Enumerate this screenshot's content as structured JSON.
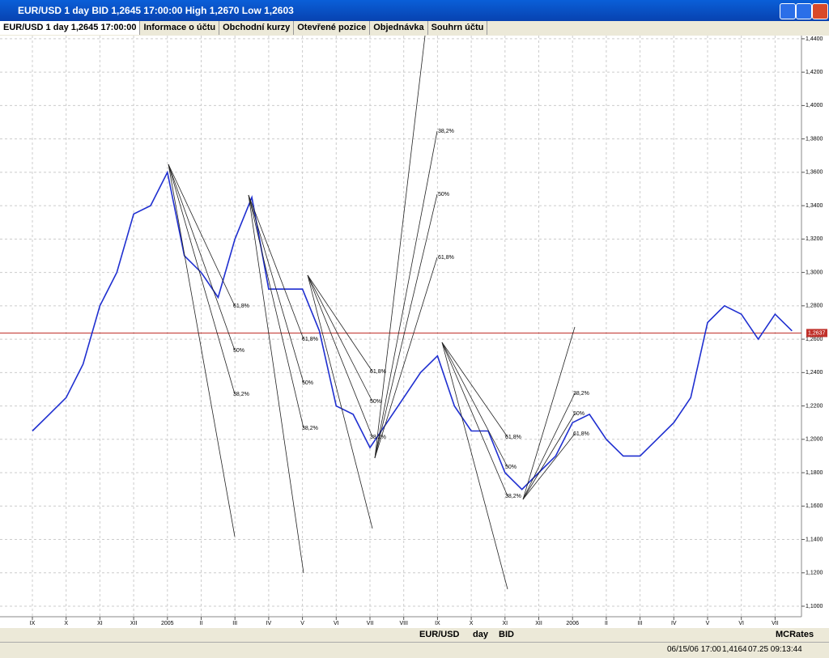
{
  "window": {
    "title": "EUR/USD 1 day BID 1,2645 17:00:00 High 1,2670 Low 1,2603"
  },
  "tabs": [
    "EUR/USD 1 day 1,2645 17:00:00",
    "Informace o účtu",
    "Obchodní kurzy",
    "Otevřené pozice",
    "Objednávka",
    "Souhrn účtu"
  ],
  "toolbar": {
    "symbol": "EUR/USD",
    "period": "day",
    "side": "BID",
    "source": "MCRates"
  },
  "status": {
    "time": "06/15/06 17:00",
    "price": "1,4164",
    "clock": "07.25 09:13:44"
  },
  "chart_data": {
    "type": "line",
    "categories": [
      "IX",
      null,
      "X",
      null,
      "XI",
      null,
      "XII",
      null,
      "2005",
      null,
      "II",
      null,
      "III",
      null,
      "IV",
      null,
      "V",
      null,
      "VI",
      null,
      "VII",
      null,
      "VIII",
      null,
      "IX",
      null,
      "X",
      null,
      "XI",
      null,
      "XII",
      null,
      "2006",
      null,
      "II",
      null,
      "III",
      null,
      "IV",
      null,
      "V",
      null,
      "VI",
      null,
      "VII",
      null
    ],
    "series": [
      {
        "name": "EUR/USD",
        "color": "#1f2fd0",
        "values": [
          1.205,
          1.215,
          1.225,
          1.245,
          1.28,
          1.3,
          1.335,
          1.34,
          1.36,
          1.31,
          1.3,
          1.285,
          1.32,
          1.345,
          1.29,
          1.29,
          1.29,
          1.265,
          1.22,
          1.215,
          1.195,
          1.21,
          1.225,
          1.24,
          1.25,
          1.22,
          1.205,
          1.205,
          1.18,
          1.17,
          1.18,
          1.19,
          1.21,
          1.215,
          1.2,
          1.19,
          1.19,
          1.2,
          1.21,
          1.225,
          1.27,
          1.28,
          1.275,
          1.26,
          1.275,
          1.265
        ]
      }
    ],
    "ylim": [
      1.0937,
      1.4419
    ],
    "yticks": [
      {
        "value": 1.1,
        "label": "1,1000"
      },
      {
        "value": 1.12,
        "label": "1,1200"
      },
      {
        "value": 1.14,
        "label": "1,1400"
      },
      {
        "value": 1.16,
        "label": "1,1600"
      },
      {
        "value": 1.18,
        "label": "1,1800"
      },
      {
        "value": 1.2,
        "label": "1,2000"
      },
      {
        "value": 1.22,
        "label": "1,2200"
      },
      {
        "value": 1.24,
        "label": "1,2400"
      },
      {
        "value": 1.26,
        "label": "1,2600"
      },
      {
        "value": 1.28,
        "label": "1,2800"
      },
      {
        "value": 1.3,
        "label": "1,3000"
      },
      {
        "value": 1.32,
        "label": "1,3200"
      },
      {
        "value": 1.34,
        "label": "1,3400"
      },
      {
        "value": 1.36,
        "label": "1,3600"
      },
      {
        "value": 1.38,
        "label": "1,3800"
      },
      {
        "value": 1.4,
        "label": "1,4000"
      },
      {
        "value": 1.42,
        "label": "1,4200"
      },
      {
        "value": 1.44,
        "label": "1,4400"
      }
    ],
    "current": {
      "value": 1.2637,
      "label": "1,2637",
      "color": "#c0302a"
    },
    "grid": true,
    "annotations": [
      "61,8%",
      "50%",
      "38,2%",
      "61,8%",
      "50%",
      "38,2%",
      "61,8%",
      "50%",
      "38,2%",
      "38,2%",
      "50%",
      "61,8%",
      "61,8%",
      "50%",
      "38,2%",
      "38,2%",
      "50%",
      "61,8%"
    ]
  }
}
